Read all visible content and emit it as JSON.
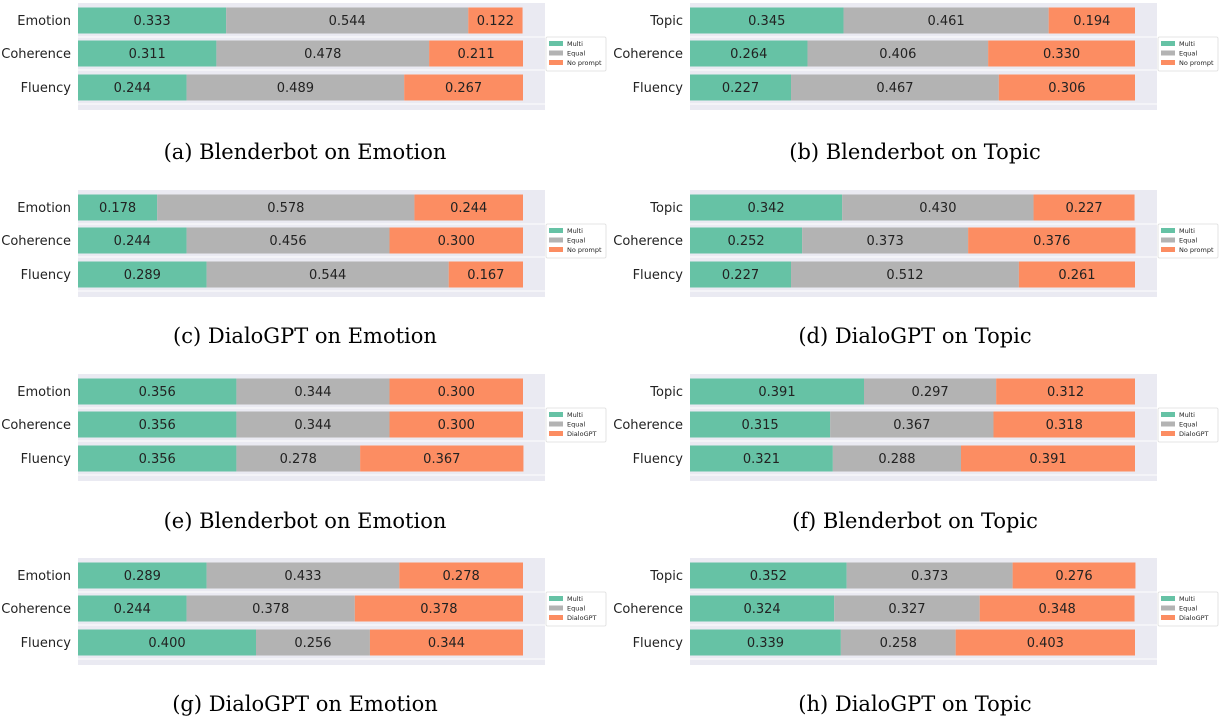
{
  "colors": {
    "multi": "#66c2a5",
    "equal": "#b3b3b3",
    "third": "#fc8d62",
    "plot_bg": "#eaeaf2"
  },
  "chart_data": [
    {
      "type": "bar",
      "stacked": true,
      "orientation": "horizontal",
      "caption": "(a) Blenderbot on Emotion",
      "categories": [
        "Emotion",
        "Coherence",
        "Fluency"
      ],
      "xlim": [
        0,
        1
      ],
      "grid": true,
      "legend_position": "right",
      "series": [
        {
          "name": "Multi",
          "values": [
            0.333,
            0.311,
            0.244
          ]
        },
        {
          "name": "Equal",
          "values": [
            0.544,
            0.478,
            0.489
          ]
        },
        {
          "name": "No prompt",
          "values": [
            0.122,
            0.211,
            0.267
          ]
        }
      ]
    },
    {
      "type": "bar",
      "stacked": true,
      "orientation": "horizontal",
      "caption": "(b) Blenderbot on Topic",
      "categories": [
        "Topic",
        "Coherence",
        "Fluency"
      ],
      "xlim": [
        0,
        1
      ],
      "grid": true,
      "legend_position": "right",
      "series": [
        {
          "name": "Multi",
          "values": [
            0.345,
            0.264,
            0.227
          ]
        },
        {
          "name": "Equal",
          "values": [
            0.461,
            0.406,
            0.467
          ]
        },
        {
          "name": "No prompt",
          "values": [
            0.194,
            0.33,
            0.306
          ]
        }
      ]
    },
    {
      "type": "bar",
      "stacked": true,
      "orientation": "horizontal",
      "caption": "(c) DialoGPT on Emotion",
      "categories": [
        "Emotion",
        "Coherence",
        "Fluency"
      ],
      "xlim": [
        0,
        1
      ],
      "grid": true,
      "legend_position": "right",
      "series": [
        {
          "name": "Multi",
          "values": [
            0.178,
            0.244,
            0.289
          ]
        },
        {
          "name": "Equal",
          "values": [
            0.578,
            0.456,
            0.544
          ]
        },
        {
          "name": "No prompt",
          "values": [
            0.244,
            0.3,
            0.167
          ]
        }
      ]
    },
    {
      "type": "bar",
      "stacked": true,
      "orientation": "horizontal",
      "caption": "(d) DialoGPT on Topic",
      "categories": [
        "Topic",
        "Coherence",
        "Fluency"
      ],
      "xlim": [
        0,
        1
      ],
      "grid": true,
      "legend_position": "right",
      "series": [
        {
          "name": "Multi",
          "values": [
            0.342,
            0.252,
            0.227
          ]
        },
        {
          "name": "Equal",
          "values": [
            0.43,
            0.373,
            0.512
          ]
        },
        {
          "name": "No prompt",
          "values": [
            0.227,
            0.376,
            0.261
          ]
        }
      ]
    },
    {
      "type": "bar",
      "stacked": true,
      "orientation": "horizontal",
      "caption": "(e) Blenderbot on Emotion",
      "categories": [
        "Emotion",
        "Coherence",
        "Fluency"
      ],
      "xlim": [
        0,
        1
      ],
      "grid": true,
      "legend_position": "right",
      "series": [
        {
          "name": "Multi",
          "values": [
            0.356,
            0.356,
            0.356
          ]
        },
        {
          "name": "Equal",
          "values": [
            0.344,
            0.344,
            0.278
          ]
        },
        {
          "name": "DialoGPT",
          "values": [
            0.3,
            0.3,
            0.367
          ]
        }
      ]
    },
    {
      "type": "bar",
      "stacked": true,
      "orientation": "horizontal",
      "caption": "(f) Blenderbot on Topic",
      "categories": [
        "Topic",
        "Coherence",
        "Fluency"
      ],
      "xlim": [
        0,
        1
      ],
      "grid": true,
      "legend_position": "right",
      "series": [
        {
          "name": "Multi",
          "values": [
            0.391,
            0.315,
            0.321
          ]
        },
        {
          "name": "Equal",
          "values": [
            0.297,
            0.367,
            0.288
          ]
        },
        {
          "name": "DialoGPT",
          "values": [
            0.312,
            0.318,
            0.391
          ]
        }
      ]
    },
    {
      "type": "bar",
      "stacked": true,
      "orientation": "horizontal",
      "caption": "(g) DialoGPT on Emotion",
      "categories": [
        "Emotion",
        "Coherence",
        "Fluency"
      ],
      "xlim": [
        0,
        1
      ],
      "grid": true,
      "legend_position": "right",
      "series": [
        {
          "name": "Multi",
          "values": [
            0.289,
            0.244,
            0.4
          ]
        },
        {
          "name": "Equal",
          "values": [
            0.433,
            0.378,
            0.256
          ]
        },
        {
          "name": "DialoGPT",
          "values": [
            0.278,
            0.378,
            0.344
          ]
        }
      ]
    },
    {
      "type": "bar",
      "stacked": true,
      "orientation": "horizontal",
      "caption": "(h) DialoGPT on Topic",
      "categories": [
        "Topic",
        "Coherence",
        "Fluency"
      ],
      "xlim": [
        0,
        1
      ],
      "grid": true,
      "legend_position": "right",
      "series": [
        {
          "name": "Multi",
          "values": [
            0.352,
            0.324,
            0.339
          ]
        },
        {
          "name": "Equal",
          "values": [
            0.373,
            0.327,
            0.258
          ]
        },
        {
          "name": "DialoGPT",
          "values": [
            0.276,
            0.348,
            0.403
          ]
        }
      ]
    }
  ]
}
